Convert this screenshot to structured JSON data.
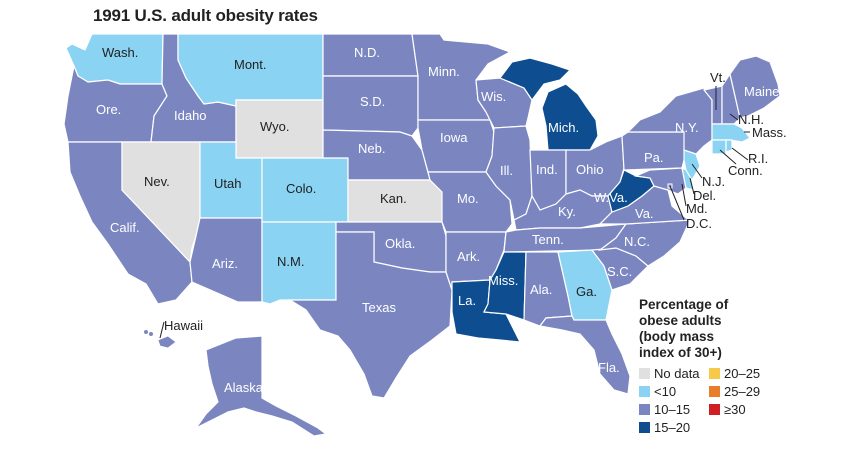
{
  "title": "1991 U.S. adult obesity rates",
  "colors": {
    "no_data": "#e0e0e0",
    "lt10": "#8ad3f3",
    "r10_15": "#7b86c1",
    "r15_20": "#0e4d8f",
    "r20_25": "#f7c948",
    "r25_29": "#ea7d2c",
    "ge30": "#cf1f25",
    "border": "#ffffff",
    "label_dark": "#222222",
    "label_light": "#ffffff"
  },
  "states": {
    "wa": "Wash.",
    "or": "Ore.",
    "ca": "Calif.",
    "id": "Idaho",
    "nv": "Nev.",
    "mt": "Mont.",
    "wy": "Wyo.",
    "ut": "Utah",
    "az": "Ariz.",
    "co": "Colo.",
    "nm": "N.M.",
    "nd": "N.D.",
    "sd": "S.D.",
    "ne": "Neb.",
    "ks": "Kan.",
    "ok": "Okla.",
    "tx": "Texas",
    "mn": "Minn.",
    "ia": "Iowa",
    "mo": "Mo.",
    "ar": "Ark.",
    "la": "La.",
    "wi": "Wis.",
    "il": "Ill.",
    "mi": "Mich.",
    "in": "Ind.",
    "oh": "Ohio",
    "ky": "Ky.",
    "tn": "Tenn.",
    "ms": "Miss.",
    "al": "Ala.",
    "ga": "Ga.",
    "fl": "Fla.",
    "sc": "S.C.",
    "nc": "N.C.",
    "va": "Va.",
    "wv": "W.Va.",
    "pa": "Pa.",
    "ny": "N.Y.",
    "me": "Maine",
    "vt": "Vt.",
    "nh": "N.H.",
    "ma": "Mass.",
    "ri": "R.I.",
    "ct": "Conn.",
    "nj": "N.J.",
    "de": "Del.",
    "md": "Md.",
    "dc": "D.C.",
    "hi": "Hawaii",
    "ak": "Alaska"
  },
  "legend": {
    "title": "Percentage of obese adults (body mass index of 30+)",
    "items": [
      {
        "label": "No data",
        "color": "#e0e0e0"
      },
      {
        "label": "20–25",
        "color": "#f7c948"
      },
      {
        "label": "<10",
        "color": "#8ad3f3"
      },
      {
        "label": "25–29",
        "color": "#ea7d2c"
      },
      {
        "label": "10–15",
        "color": "#7b86c1"
      },
      {
        "label": "≥30",
        "color": "#cf1f25"
      },
      {
        "label": "15–20",
        "color": "#0e4d8f"
      }
    ]
  }
}
